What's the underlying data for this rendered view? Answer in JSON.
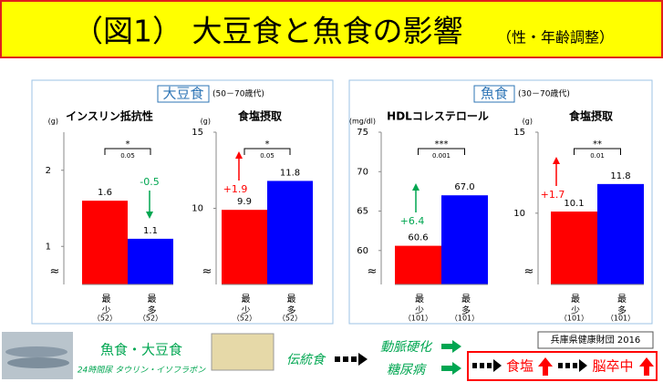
{
  "header": {
    "title": "（図1） 大豆食と魚食の影響",
    "subtitle": "（性・年齢調整）"
  },
  "panels": [
    {
      "label": "大豆食",
      "age": "(50－70歳代)"
    },
    {
      "label": "魚食",
      "age": "(30－70歳代)"
    }
  ],
  "chart_data": [
    {
      "type": "bar",
      "title": "インスリン抵抗性",
      "unit": "(g)",
      "categories": [
        "最少",
        "最多"
      ],
      "sample_sizes": [
        "（52）",
        "（52）"
      ],
      "values": [
        1.6,
        1.1
      ],
      "colors": [
        "#ff0000",
        "#0000ff"
      ],
      "ylim": [
        0.5,
        2.5
      ],
      "yticks": [
        1,
        2
      ],
      "axis_break": "≈",
      "significance": {
        "stars": "*",
        "p": "0.05"
      },
      "change": {
        "label": "-0.5",
        "color": "#00a651"
      }
    },
    {
      "type": "bar",
      "title": "食塩摂取",
      "unit": "(g)",
      "categories": [
        "最少",
        "最多"
      ],
      "sample_sizes": [
        "（52）",
        "（52）"
      ],
      "values": [
        9.9,
        11.8
      ],
      "colors": [
        "#ff0000",
        "#0000ff"
      ],
      "ylim": [
        5,
        15
      ],
      "yticks": [
        10,
        15
      ],
      "axis_break": "≈",
      "significance": {
        "stars": "*",
        "p": "0.05"
      },
      "change": {
        "label": "+1.9",
        "color": "#ff0000"
      }
    },
    {
      "type": "bar",
      "title": "HDLコレステロール",
      "unit": "(mg/dl)",
      "categories": [
        "最少",
        "最多"
      ],
      "sample_sizes": [
        "（101）",
        "（101）"
      ],
      "values": [
        60.6,
        67
      ],
      "value_labels": [
        "60.6",
        "67.0"
      ],
      "colors": [
        "#ff0000",
        "#0000ff"
      ],
      "ylim": [
        55.7,
        75
      ],
      "yticks": [
        60,
        65,
        70,
        75
      ],
      "axis_break": "≈",
      "significance": {
        "stars": "***",
        "p": "0.001"
      },
      "change": {
        "label": "+6.4",
        "color": "#00a651"
      }
    },
    {
      "type": "bar",
      "title": "食塩摂取",
      "unit": "(g)",
      "categories": [
        "最少",
        "最多"
      ],
      "sample_sizes": [
        "（101）",
        "（101）"
      ],
      "values": [
        10.1,
        11.8
      ],
      "colors": [
        "#ff0000",
        "#0000ff"
      ],
      "ylim": [
        5.6,
        15
      ],
      "yticks": [
        10,
        15
      ],
      "axis_break": "≈",
      "significance": {
        "stars": "**",
        "p": "0.01"
      },
      "change": {
        "label": "+1.7",
        "color": "#ff0000"
      }
    }
  ],
  "footer": {
    "source": "兵庫県健康財団 2016",
    "food": "魚食・大豆食",
    "markers": "24時間尿 タウリン・イソフラボン",
    "traditional": "伝統食",
    "disease1": "動脈硬化",
    "disease2": "糖尿病",
    "salt": "食塩",
    "stroke": "脳卒中"
  }
}
